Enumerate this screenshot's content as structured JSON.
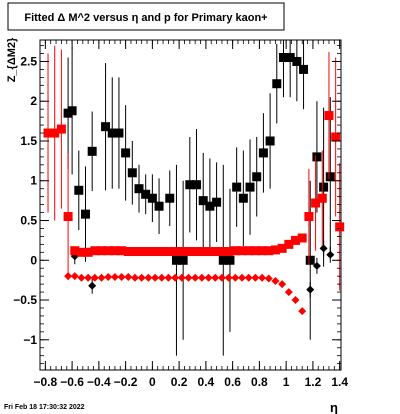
{
  "footer": {
    "timestamp": "Fri Feb 18 17:30:32 2022"
  },
  "chart_data": {
    "type": "scatter",
    "title": "Fitted Δ M^2 versus η and p for Primary kaon+",
    "xlabel": "η",
    "ylabel": "Z_{ΔM2}",
    "xlim": [
      -0.84,
      1.41
    ],
    "ylim": [
      -1.38,
      2.77
    ],
    "xticks": [
      -0.8,
      -0.6,
      -0.4,
      -0.2,
      0,
      0.2,
      0.4,
      0.6,
      0.8,
      1,
      1.2,
      1.4
    ],
    "xtick_labels": [
      "−0.8",
      "−0.6",
      "−0.4",
      "−0.2",
      "0",
      "0.2",
      "0.4",
      "0.6",
      "0.8",
      "1",
      "1.2",
      "1.4"
    ],
    "yticks": [
      -1,
      -0.5,
      0,
      0.5,
      1,
      1.5,
      2,
      2.5
    ],
    "ytick_labels": [
      "−1",
      "−0.5",
      "0",
      "0.5",
      "1",
      "1.5",
      "2",
      "2.5"
    ],
    "grid": false,
    "legend": "none",
    "series": [
      {
        "color": "#000000",
        "marker": "square",
        "points": [
          [
            -0.63,
            1.85,
            0.7
          ],
          [
            -0.6,
            1.88,
            0.8
          ],
          [
            -0.55,
            0.88,
            0.5
          ],
          [
            -0.5,
            0.58,
            0.6
          ],
          [
            -0.45,
            1.37,
            0.5
          ],
          [
            -0.35,
            1.68,
            0.8
          ],
          [
            -0.3,
            1.6,
            0.7
          ],
          [
            -0.25,
            1.6,
            0.7
          ],
          [
            -0.2,
            1.35,
            0.6
          ],
          [
            -0.15,
            1.1,
            0.4
          ],
          [
            -0.1,
            0.9,
            0.3
          ],
          [
            -0.05,
            0.83,
            0.25
          ],
          [
            0.0,
            0.78,
            0.3
          ],
          [
            0.05,
            0.68,
            0.35
          ],
          [
            0.13,
            0.78,
            0.35
          ],
          [
            0.18,
            0.0,
            1.2
          ],
          [
            0.23,
            0.0,
            1.0
          ],
          [
            0.28,
            0.95,
            0.6
          ],
          [
            0.33,
            0.95,
            0.7
          ],
          [
            0.38,
            0.75,
            0.6
          ],
          [
            0.43,
            0.68,
            0.6
          ],
          [
            0.48,
            0.73,
            0.5
          ],
          [
            0.53,
            0.0,
            1.2
          ],
          [
            0.58,
            0.0,
            0.9
          ],
          [
            0.63,
            0.92,
            0.5
          ],
          [
            0.68,
            0.78,
            0.6
          ],
          [
            0.73,
            0.92,
            0.6
          ],
          [
            0.78,
            1.05,
            0.5
          ],
          [
            0.83,
            1.35,
            0.5
          ],
          [
            0.88,
            1.5,
            0.6
          ],
          [
            0.93,
            2.22,
            0.5
          ],
          [
            0.98,
            2.55,
            0.5
          ],
          [
            1.03,
            2.55,
            0.5
          ],
          [
            1.08,
            2.5,
            0.5
          ],
          [
            1.13,
            2.4,
            0.5
          ],
          [
            1.18,
            0.0,
            1.0
          ],
          [
            1.23,
            1.3,
            0.7
          ],
          [
            1.28,
            0.92,
            1.0
          ],
          [
            1.33,
            1.05,
            1.0
          ]
        ]
      },
      {
        "color": "#000000",
        "marker": "diamond",
        "points": [
          [
            -0.58,
            0.05,
            0.1
          ],
          [
            -0.45,
            -0.32,
            0.1
          ],
          [
            1.18,
            -0.37,
            0.1
          ],
          [
            1.23,
            -0.07,
            0.1
          ],
          [
            1.28,
            0.15,
            0.1
          ],
          [
            1.33,
            0.07,
            0.1
          ]
        ]
      },
      {
        "color": "#ff0000",
        "marker": "square",
        "points": [
          [
            -0.78,
            1.6,
            1.0
          ],
          [
            -0.73,
            1.6,
            1.1
          ],
          [
            -0.68,
            1.65,
            1.0
          ],
          [
            -0.63,
            0.55,
            0.8
          ],
          [
            -0.58,
            0.12,
            0.05
          ],
          [
            -0.53,
            0.1,
            0.05
          ],
          [
            -0.48,
            0.1,
            0.05
          ],
          [
            -0.43,
            0.12,
            0.05
          ],
          [
            -0.38,
            0.12,
            0.05
          ],
          [
            -0.33,
            0.12,
            0.05
          ],
          [
            -0.28,
            0.12,
            0.05
          ],
          [
            -0.23,
            0.12,
            0.05
          ],
          [
            -0.18,
            0.11,
            0.05
          ],
          [
            -0.13,
            0.11,
            0.05
          ],
          [
            -0.08,
            0.11,
            0.05
          ],
          [
            -0.03,
            0.11,
            0.05
          ],
          [
            0.02,
            0.11,
            0.05
          ],
          [
            0.07,
            0.11,
            0.05
          ],
          [
            0.12,
            0.11,
            0.05
          ],
          [
            0.17,
            0.11,
            0.05
          ],
          [
            0.22,
            0.11,
            0.05
          ],
          [
            0.27,
            0.11,
            0.05
          ],
          [
            0.32,
            0.11,
            0.05
          ],
          [
            0.37,
            0.11,
            0.05
          ],
          [
            0.42,
            0.11,
            0.05
          ],
          [
            0.47,
            0.11,
            0.05
          ],
          [
            0.52,
            0.11,
            0.05
          ],
          [
            0.57,
            0.11,
            0.05
          ],
          [
            0.62,
            0.12,
            0.05
          ],
          [
            0.67,
            0.12,
            0.05
          ],
          [
            0.72,
            0.12,
            0.05
          ],
          [
            0.77,
            0.12,
            0.05
          ],
          [
            0.82,
            0.12,
            0.05
          ],
          [
            0.87,
            0.12,
            0.05
          ],
          [
            0.92,
            0.13,
            0.05
          ],
          [
            0.97,
            0.15,
            0.05
          ],
          [
            1.02,
            0.2,
            0.05
          ],
          [
            1.07,
            0.25,
            0.05
          ],
          [
            1.12,
            0.28,
            0.05
          ],
          [
            1.17,
            0.55,
            0.6
          ],
          [
            1.22,
            0.72,
            0.6
          ],
          [
            1.27,
            0.78,
            0.6
          ],
          [
            1.32,
            1.82,
            0.8
          ],
          [
            1.37,
            1.55,
            1.0
          ],
          [
            1.4,
            0.42,
            0.8
          ]
        ]
      },
      {
        "color": "#ff0000",
        "marker": "diamond",
        "points": [
          [
            -0.63,
            -0.2,
            0.05
          ],
          [
            -0.58,
            -0.2,
            0.05
          ],
          [
            -0.53,
            -0.22,
            0.05
          ],
          [
            -0.48,
            -0.22,
            0.05
          ],
          [
            -0.43,
            -0.22,
            0.05
          ],
          [
            -0.38,
            -0.22,
            0.05
          ],
          [
            -0.33,
            -0.21,
            0.05
          ],
          [
            -0.28,
            -0.21,
            0.05
          ],
          [
            -0.23,
            -0.21,
            0.05
          ],
          [
            -0.18,
            -0.21,
            0.05
          ],
          [
            -0.13,
            -0.22,
            0.05
          ],
          [
            -0.08,
            -0.22,
            0.05
          ],
          [
            -0.03,
            -0.22,
            0.05
          ],
          [
            0.02,
            -0.22,
            0.05
          ],
          [
            0.07,
            -0.22,
            0.05
          ],
          [
            0.12,
            -0.22,
            0.05
          ],
          [
            0.17,
            -0.22,
            0.05
          ],
          [
            0.22,
            -0.22,
            0.05
          ],
          [
            0.27,
            -0.22,
            0.05
          ],
          [
            0.32,
            -0.22,
            0.05
          ],
          [
            0.37,
            -0.22,
            0.05
          ],
          [
            0.42,
            -0.22,
            0.05
          ],
          [
            0.47,
            -0.22,
            0.05
          ],
          [
            0.52,
            -0.22,
            0.05
          ],
          [
            0.57,
            -0.22,
            0.05
          ],
          [
            0.62,
            -0.22,
            0.05
          ],
          [
            0.67,
            -0.22,
            0.05
          ],
          [
            0.72,
            -0.22,
            0.05
          ],
          [
            0.77,
            -0.22,
            0.05
          ],
          [
            0.82,
            -0.22,
            0.05
          ],
          [
            0.87,
            -0.23,
            0.05
          ],
          [
            0.92,
            -0.26,
            0.05
          ],
          [
            0.97,
            -0.3,
            0.05
          ],
          [
            1.02,
            -0.4,
            0.05
          ],
          [
            1.07,
            -0.5,
            0.05
          ],
          [
            1.12,
            -0.64,
            0.05
          ]
        ]
      }
    ]
  }
}
